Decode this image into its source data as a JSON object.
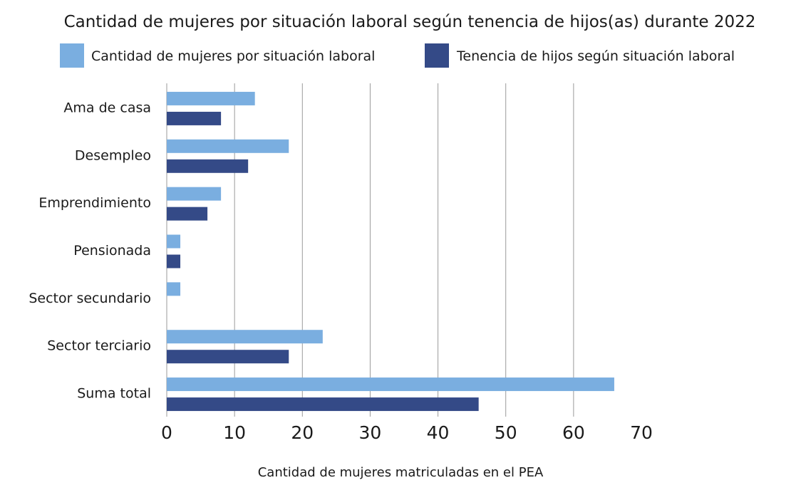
{
  "chart_data": {
    "type": "bar",
    "orientation": "horizontal",
    "title": "Cantidad de mujeres por situación laboral según tenencia de hijos(as) durante 2022",
    "xlabel": "Cantidad de mujeres matriculadas en el PEA",
    "ylabel": "",
    "categories": [
      "Ama de casa",
      "Desempleo",
      "Emprendimiento",
      "Pensionada",
      "Sector secundario",
      "Sector terciario",
      "Suma total"
    ],
    "series": [
      {
        "name": "Cantidad de mujeres por situación laboral",
        "color": "#7aaee0",
        "values": [
          13,
          18,
          8,
          2,
          2,
          23,
          66
        ]
      },
      {
        "name": "Tenencia de hijos según situación laboral",
        "color": "#344a87",
        "values": [
          8,
          12,
          6,
          2,
          0,
          18,
          46
        ]
      }
    ],
    "xlim": [
      0,
      70
    ],
    "xticks": [
      "0",
      "10",
      "20",
      "30",
      "40",
      "50",
      "60",
      "70"
    ],
    "grid": "vertical",
    "legend_position": "top"
  }
}
